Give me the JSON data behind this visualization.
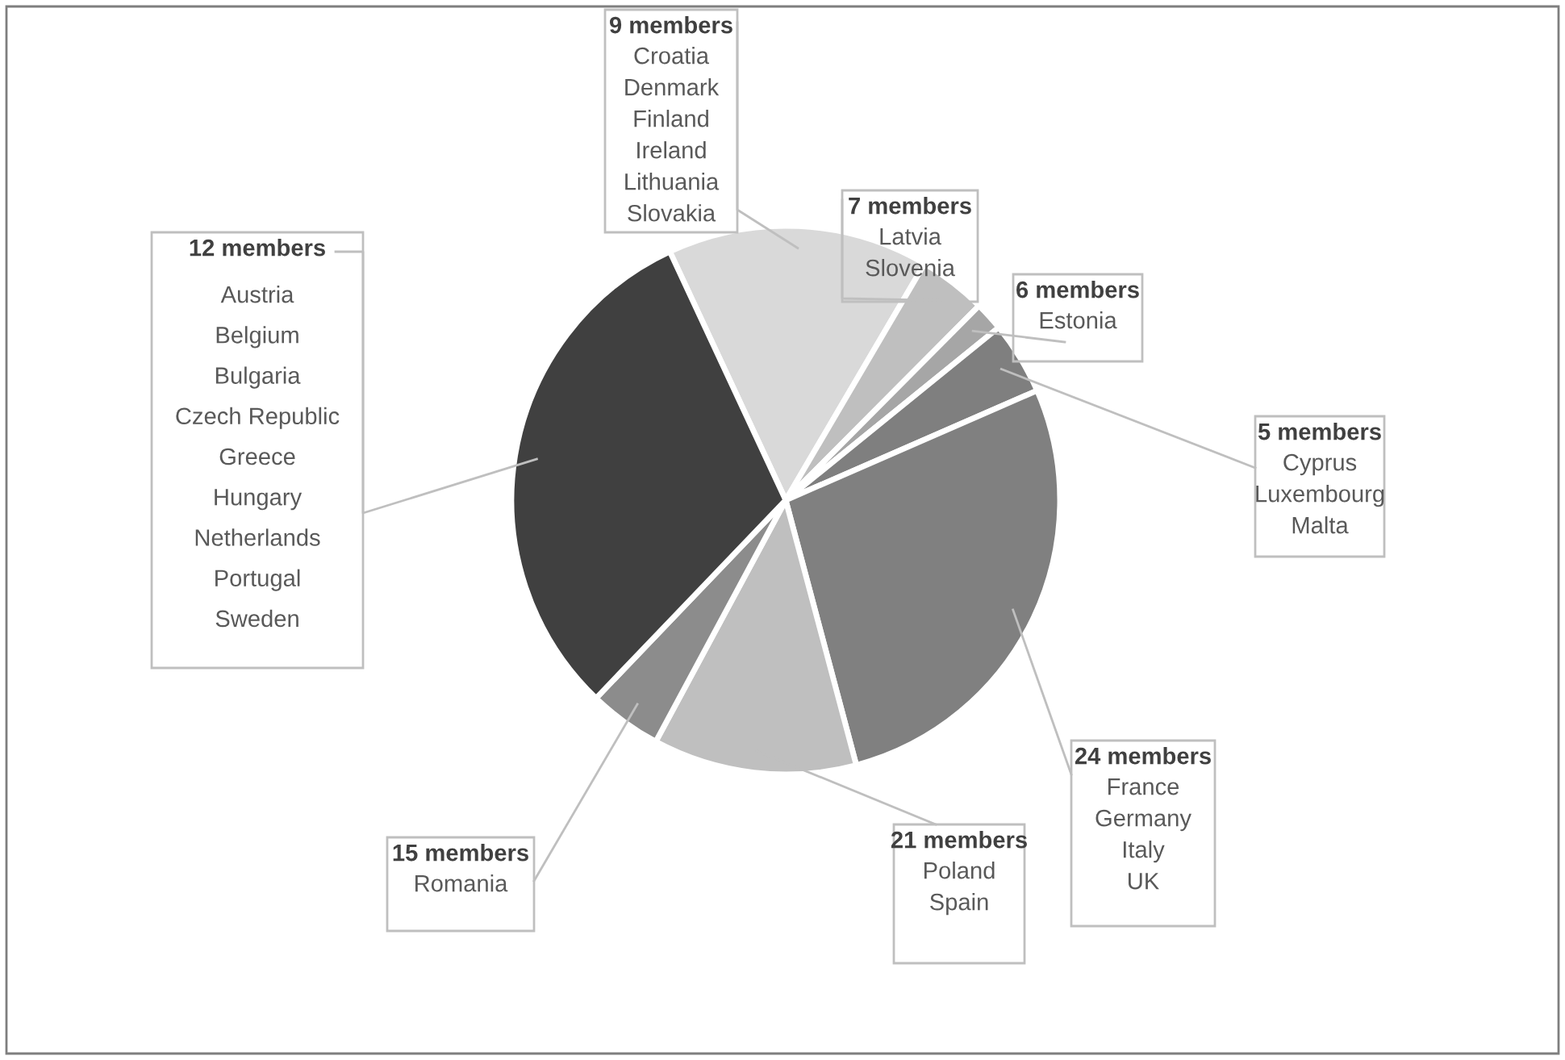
{
  "chart_data": {
    "type": "pie",
    "categories": [
      "9 members",
      "7 members",
      "6 members",
      "5 members",
      "24 members",
      "21 members",
      "15 members",
      "12 members"
    ],
    "values": [
      15.4,
      4.0,
      1.7,
      4.3,
      27.4,
      12.0,
      4.3,
      30.9
    ],
    "colors": [
      "#d9d9d9",
      "#bfbfbf",
      "#a6a6a6",
      "#7f7f7f",
      "#808080",
      "#bfbfbf",
      "#8c8c8c",
      "#404040"
    ],
    "annotations": [
      "Croatia\nDenmark\nFinland\nIreland\nLithuania\nSlovakia",
      "Latvia\nSlovenia",
      "Estonia",
      "Cyprus\nLuxembourg\nMalta",
      "France\nGermany\nItaly\nUK",
      "Poland\nSpain",
      "Romania",
      "Austria\nBelgium\nBulgaria\nCzech Republic\nGreece\nHungary\nNetherlands\nPortugal\nSweden"
    ],
    "legend": false
  }
}
